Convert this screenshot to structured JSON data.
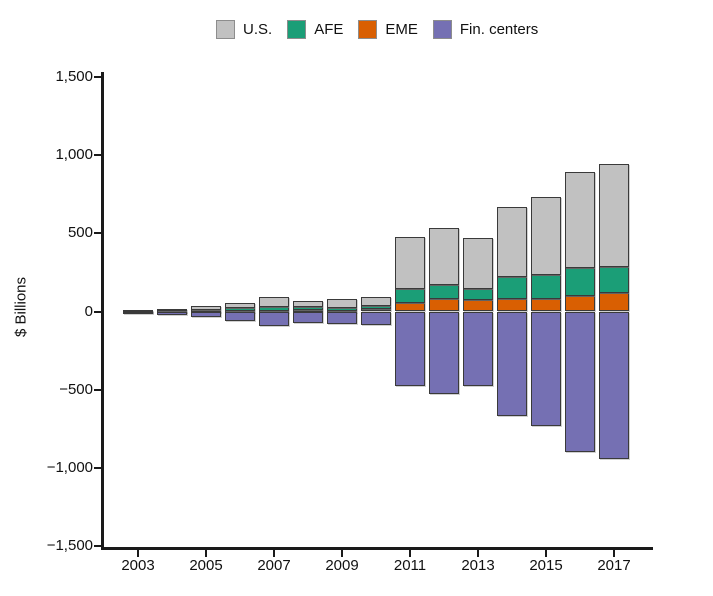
{
  "figure": {
    "ylabel": "$ Billions",
    "units": "$ Billions",
    "background": "#ffffff",
    "axis_color": "#1a1a1a"
  },
  "chart_data": {
    "type": "bar",
    "stacked": true,
    "title": "",
    "xlabel": "",
    "ylabel": "$ Billions",
    "categories": [
      2003,
      2004,
      2005,
      2006,
      2007,
      2008,
      2009,
      2010,
      2011,
      2012,
      2013,
      2014,
      2015,
      2016,
      2017
    ],
    "series": [
      {
        "name": "U.S.",
        "color": "#c1c1c1",
        "values": [
          9,
          13,
          26,
          36,
          66,
          38,
          55,
          60,
          330,
          363,
          331,
          447,
          504,
          613,
          658
        ]
      },
      {
        "name": "AFE",
        "color": "#1b9e77",
        "values": [
          2,
          3,
          7,
          14,
          22,
          20,
          18,
          17,
          90,
          88,
          69,
          141,
          148,
          182,
          164
        ]
      },
      {
        "name": "EME",
        "color": "#d95f02",
        "values": [
          1,
          2,
          3,
          6,
          6,
          8,
          6,
          15,
          56,
          81,
          72,
          81,
          83,
          98,
          120
        ]
      },
      {
        "name": "Fin. centers",
        "color": "#7570b3",
        "values": [
          -13,
          -20,
          -36,
          -60,
          -94,
          -72,
          -79,
          -88,
          -479,
          -528,
          -474,
          -671,
          -731,
          -896,
          -944
        ]
      }
    ],
    "positive_stack_order_bottom_to_top": [
      "EME",
      "AFE",
      "U.S."
    ],
    "negative_series": "Fin. centers",
    "ylim": [
      -1500,
      1500
    ],
    "ytick_values": [
      1500,
      1000,
      500,
      0,
      -500,
      -1000,
      -1500
    ],
    "ytick_labels": [
      "1,500",
      "1,000",
      "500",
      "0",
      "−500",
      "−1,000",
      "−1,500"
    ],
    "xtick_years": [
      2003,
      2005,
      2007,
      2009,
      2011,
      2013,
      2015,
      2017
    ],
    "xtick_labels": [
      "2003",
      "2005",
      "2007",
      "2009",
      "2011",
      "2013",
      "2015",
      "2017"
    ],
    "legend": {
      "position": "top",
      "entries": [
        "U.S.",
        "AFE",
        "EME",
        "Fin. centers"
      ]
    },
    "grid": false
  }
}
